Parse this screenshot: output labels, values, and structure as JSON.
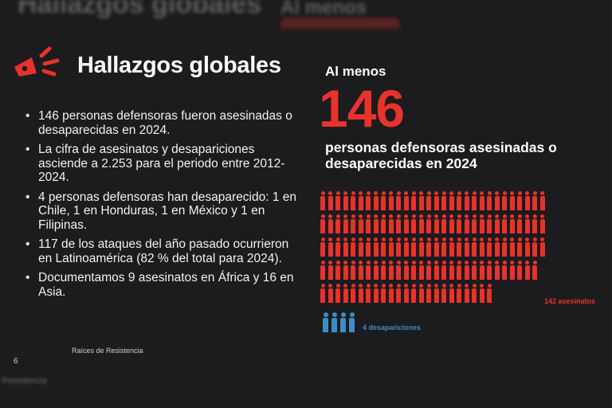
{
  "header": {
    "title": "Hallazgos globales"
  },
  "bullets": [
    "146 personas defensoras fueron asesinadas o desaparecidas en 2024.",
    "La cifra de asesinatos y desapariciones asciende a 2.253 para el periodo entre 2012-2024.",
    "4 personas defensoras han desaparecido: 1 en Chile, 1 en Honduras, 1 en México y 1 en Filipinas.",
    "117 de los ataques del año pasado ocurrieron en Latinoamérica (82 % del total para 2024).",
    "Documentamos 9 asesinatos en África y 16 en Asia."
  ],
  "footer": {
    "brand": "Raíces de Resistencia",
    "page_number": "6"
  },
  "stat": {
    "lead": "Al menos",
    "number": "146",
    "description": "personas defensoras asesinadas o desaparecidas en 2024"
  },
  "pictogram": {
    "killed_count": 142,
    "killed_label": "142 asesinatos",
    "disappeared_count": 4,
    "disappeared_label": "4 desapariciones",
    "row_counts": [
      30,
      30,
      30,
      29,
      23
    ]
  },
  "colors": {
    "accent_red": "#e8322c",
    "accent_blue": "#3c8cc8",
    "background": "#1c1b1d"
  },
  "icons": {
    "logo": "megaphone-icon"
  },
  "ghost": {
    "top_title": "Hallazgos globales",
    "top_lead": "Al menos",
    "bottom_text": "Resistencia"
  }
}
